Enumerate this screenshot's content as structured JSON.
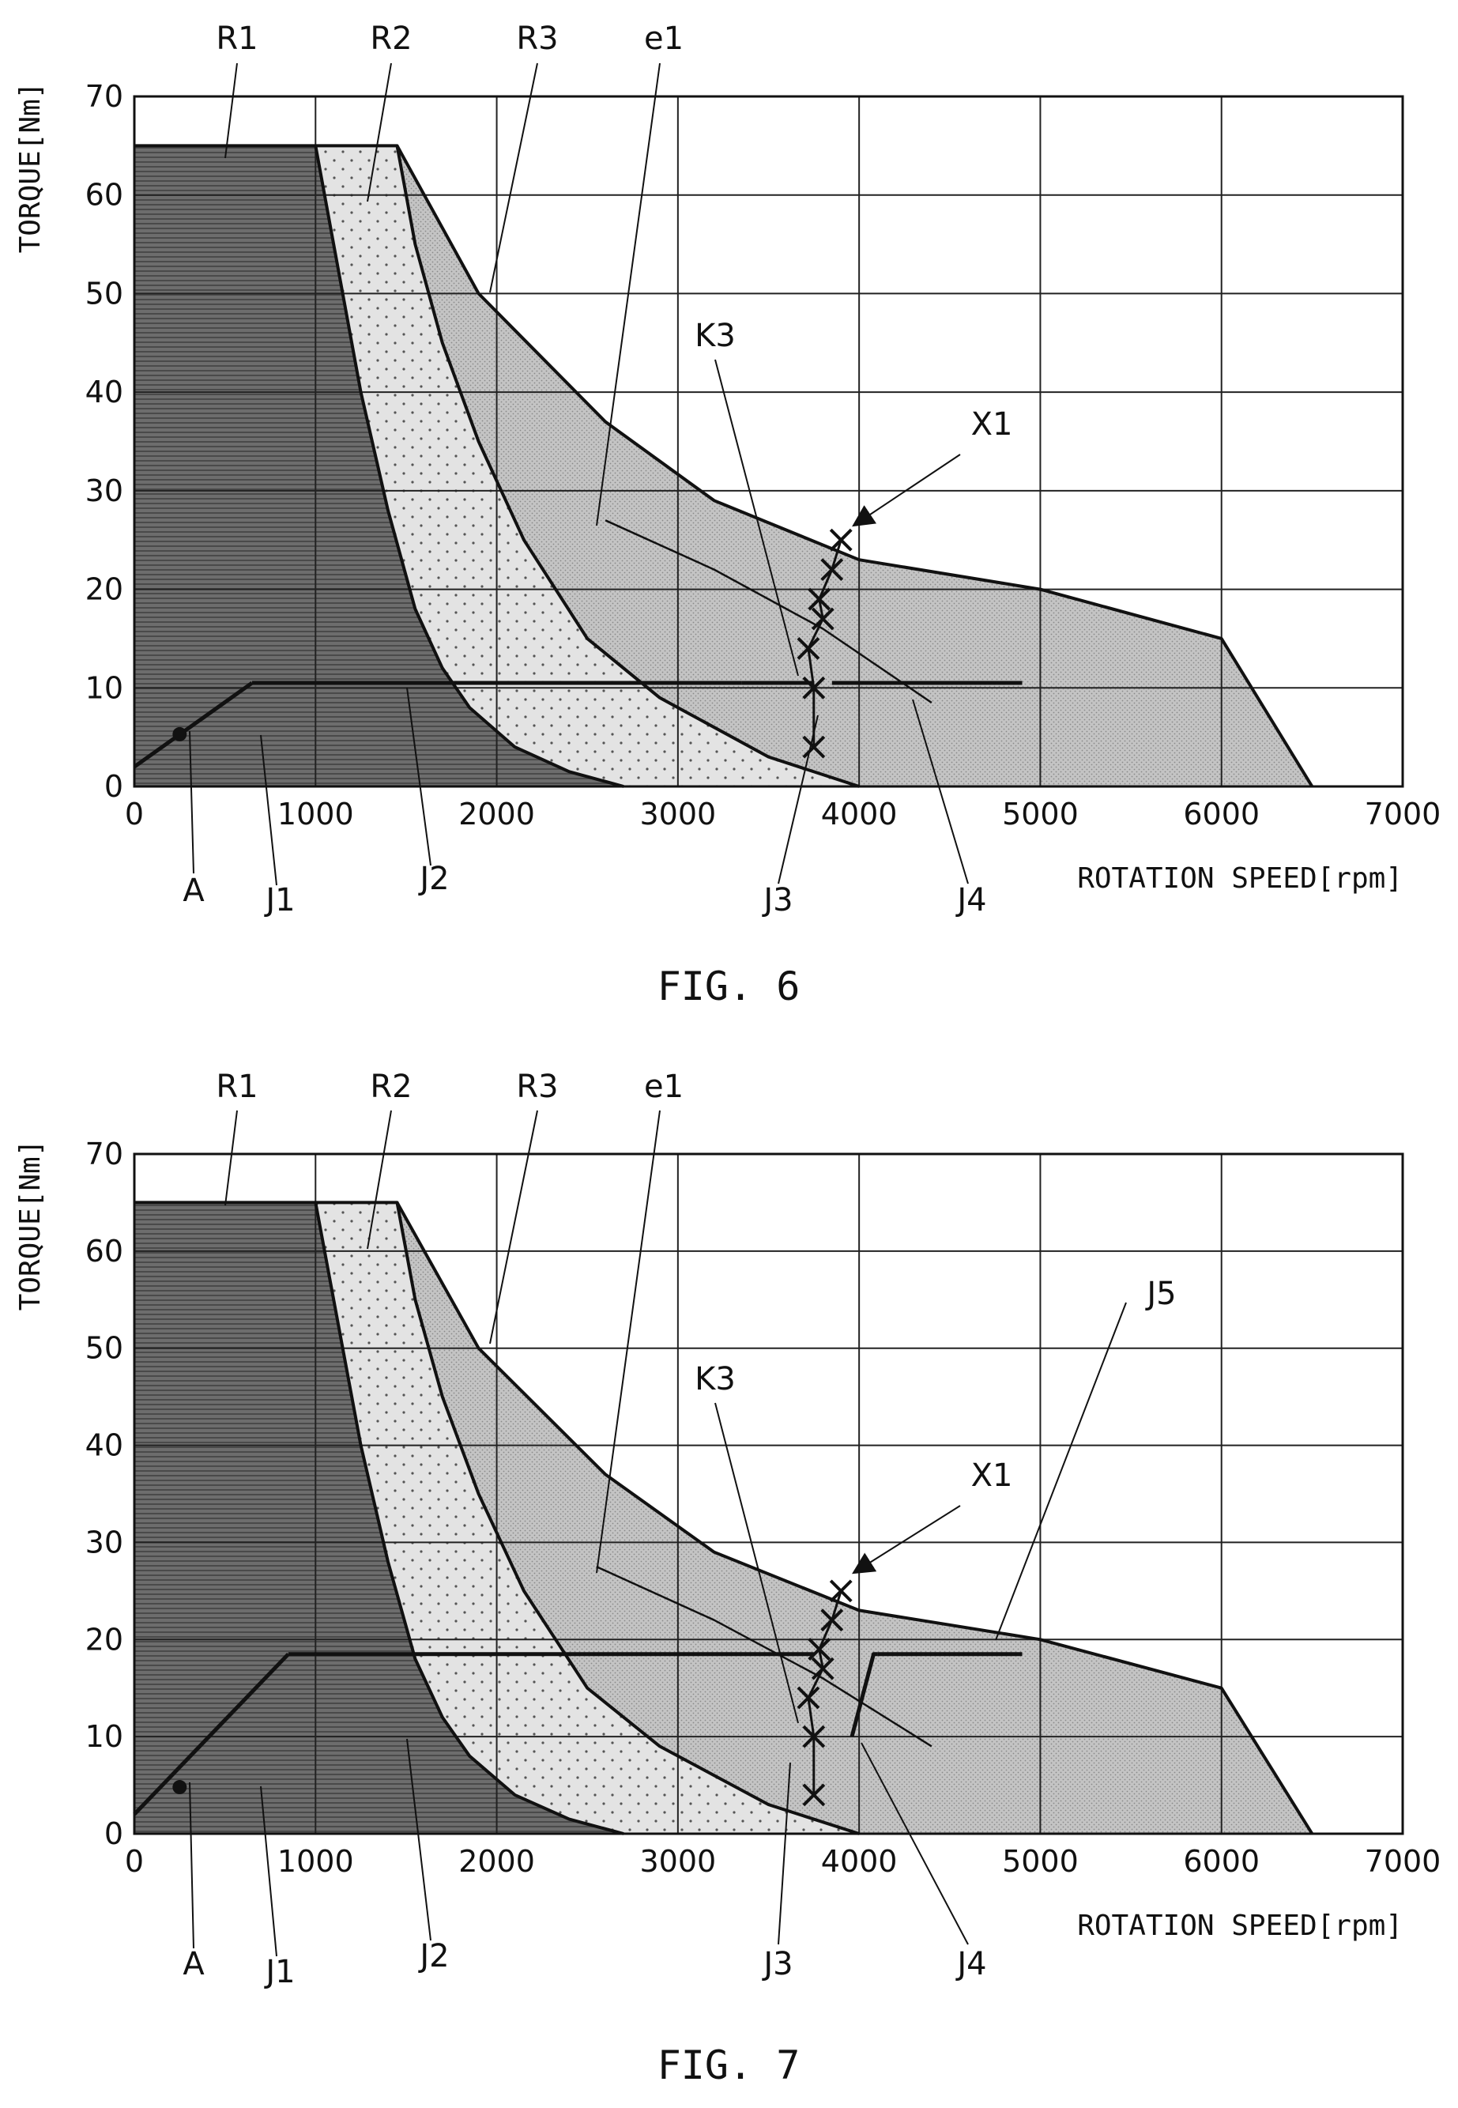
{
  "figures": [
    {
      "caption": "FIG. 6",
      "chart_data": {
        "type": "area",
        "xlabel": "ROTATION SPEED[rpm]",
        "ylabel": "TORQUE[Nm]",
        "xlim": [
          0,
          7000
        ],
        "ylim": [
          0,
          70
        ],
        "x_ticks": [
          "0",
          "1000",
          "2000",
          "3000",
          "4000",
          "5000",
          "6000",
          "7000"
        ],
        "y_ticks": [
          "0",
          "10",
          "20",
          "30",
          "40",
          "50",
          "60",
          "70"
        ],
        "grid": true,
        "regions": [
          {
            "name": "R1",
            "fill": "#6a6a6a",
            "points": [
              [
                0,
                65
              ],
              [
                1000,
                65
              ],
              [
                1100,
                55
              ],
              [
                1250,
                40
              ],
              [
                1400,
                28
              ],
              [
                1550,
                18
              ],
              [
                1700,
                12
              ],
              [
                1850,
                8
              ],
              [
                2100,
                4
              ],
              [
                2400,
                1.5
              ],
              [
                2700,
                0
              ],
              [
                0,
                0
              ]
            ]
          },
          {
            "name": "R2",
            "fill": "#dcdcdc",
            "points": [
              [
                1000,
                65
              ],
              [
                1450,
                65
              ],
              [
                1550,
                55
              ],
              [
                1700,
                45
              ],
              [
                1900,
                35
              ],
              [
                2150,
                25
              ],
              [
                2500,
                15
              ],
              [
                2900,
                9
              ],
              [
                3500,
                3
              ],
              [
                4000,
                0
              ],
              [
                2700,
                0
              ],
              [
                2400,
                1.5
              ],
              [
                2100,
                4
              ],
              [
                1850,
                8
              ],
              [
                1700,
                12
              ],
              [
                1550,
                18
              ],
              [
                1400,
                28
              ],
              [
                1250,
                40
              ],
              [
                1100,
                55
              ]
            ]
          },
          {
            "name": "R3",
            "fill": "#b9b9b9",
            "points": [
              [
                1450,
                65
              ],
              [
                1900,
                50
              ],
              [
                2600,
                37
              ],
              [
                3200,
                29
              ],
              [
                4000,
                23
              ],
              [
                5000,
                20
              ],
              [
                6000,
                15
              ],
              [
                6500,
                0
              ],
              [
                4000,
                0
              ],
              [
                3500,
                3
              ],
              [
                2900,
                9
              ],
              [
                2500,
                15
              ],
              [
                2150,
                25
              ],
              [
                1900,
                35
              ],
              [
                1700,
                45
              ],
              [
                1550,
                55
              ]
            ]
          }
        ],
        "series": [
          {
            "name": "J1",
            "x": [
              0,
              650
            ],
            "y": [
              2,
              10.5
            ]
          },
          {
            "name": "J2",
            "x": [
              650,
              3350
            ],
            "y": [
              10.5,
              10.5
            ]
          },
          {
            "name": "J3",
            "x": [
              3350,
              3750
            ],
            "y": [
              10.5,
              10.5
            ]
          },
          {
            "name": "J4",
            "x": [
              3850,
              4900
            ],
            "y": [
              10.5,
              10.5
            ]
          },
          {
            "name": "K3",
            "x": [
              3750,
              3750,
              3720,
              3800,
              3780,
              3850,
              3900
            ],
            "y": [
              4,
              10,
              14,
              17,
              19,
              22,
              25
            ]
          },
          {
            "name": "e1",
            "x": [
              2600,
              3200,
              3800,
              4400
            ],
            "y": [
              27,
              22,
              16,
              8.5
            ]
          }
        ],
        "point": {
          "name": "A",
          "x": 250,
          "y": 5.3
        },
        "labels": [
          "R1",
          "R2",
          "R3",
          "e1",
          "K3",
          "X1",
          "A",
          "J1",
          "J2",
          "J3",
          "J4"
        ]
      }
    },
    {
      "caption": "FIG. 7",
      "chart_data": {
        "type": "area",
        "xlabel": "ROTATION SPEED[rpm]",
        "ylabel": "TORQUE[Nm]",
        "xlim": [
          0,
          7000
        ],
        "ylim": [
          0,
          70
        ],
        "x_ticks": [
          "0",
          "1000",
          "2000",
          "3000",
          "4000",
          "5000",
          "6000",
          "7000"
        ],
        "y_ticks": [
          "0",
          "10",
          "20",
          "30",
          "40",
          "50",
          "60",
          "70"
        ],
        "grid": true,
        "regions": [
          {
            "name": "R1",
            "fill": "#6a6a6a",
            "points": [
              [
                0,
                65
              ],
              [
                1000,
                65
              ],
              [
                1100,
                55
              ],
              [
                1250,
                40
              ],
              [
                1400,
                28
              ],
              [
                1550,
                18
              ],
              [
                1700,
                12
              ],
              [
                1850,
                8
              ],
              [
                2100,
                4
              ],
              [
                2400,
                1.5
              ],
              [
                2700,
                0
              ],
              [
                0,
                0
              ]
            ]
          },
          {
            "name": "R2",
            "fill": "#dcdcdc",
            "points": [
              [
                1000,
                65
              ],
              [
                1450,
                65
              ],
              [
                1550,
                55
              ],
              [
                1700,
                45
              ],
              [
                1900,
                35
              ],
              [
                2150,
                25
              ],
              [
                2500,
                15
              ],
              [
                2900,
                9
              ],
              [
                3500,
                3
              ],
              [
                4000,
                0
              ],
              [
                2700,
                0
              ],
              [
                2400,
                1.5
              ],
              [
                2100,
                4
              ],
              [
                1850,
                8
              ],
              [
                1700,
                12
              ],
              [
                1550,
                18
              ],
              [
                1400,
                28
              ],
              [
                1250,
                40
              ],
              [
                1100,
                55
              ]
            ]
          },
          {
            "name": "R3",
            "fill": "#b9b9b9",
            "points": [
              [
                1450,
                65
              ],
              [
                1900,
                50
              ],
              [
                2600,
                37
              ],
              [
                3200,
                29
              ],
              [
                4000,
                23
              ],
              [
                5000,
                20
              ],
              [
                6000,
                15
              ],
              [
                6500,
                0
              ],
              [
                4000,
                0
              ],
              [
                3500,
                3
              ],
              [
                2900,
                9
              ],
              [
                2500,
                15
              ],
              [
                2150,
                25
              ],
              [
                1900,
                35
              ],
              [
                1700,
                45
              ],
              [
                1550,
                55
              ]
            ]
          }
        ],
        "series": [
          {
            "name": "J1",
            "x": [
              0,
              850
            ],
            "y": [
              2,
              18.5
            ]
          },
          {
            "name": "J2",
            "x": [
              850,
              3450
            ],
            "y": [
              18.5,
              18.5
            ]
          },
          {
            "name": "J3",
            "x": [
              3450,
              3750
            ],
            "y": [
              18.5,
              18.5
            ]
          },
          {
            "name": "J4",
            "x": [
              3960,
              4080,
              4100
            ],
            "y": [
              10,
              18.5,
              18.5
            ]
          },
          {
            "name": "J5",
            "x": [
              4100,
              4900
            ],
            "y": [
              18.5,
              18.5
            ]
          },
          {
            "name": "K3",
            "x": [
              3750,
              3750,
              3720,
              3800,
              3780,
              3850,
              3900
            ],
            "y": [
              4,
              10,
              14,
              17,
              19,
              22,
              25
            ]
          },
          {
            "name": "e1",
            "x": [
              2550,
              3200,
              3800,
              4400
            ],
            "y": [
              27.5,
              22,
              16,
              9
            ]
          }
        ],
        "point": {
          "name": "A",
          "x": 250,
          "y": 4.8
        },
        "labels": [
          "R1",
          "R2",
          "R3",
          "e1",
          "K3",
          "X1",
          "J5",
          "A",
          "J1",
          "J2",
          "J3",
          "J4"
        ]
      }
    }
  ]
}
